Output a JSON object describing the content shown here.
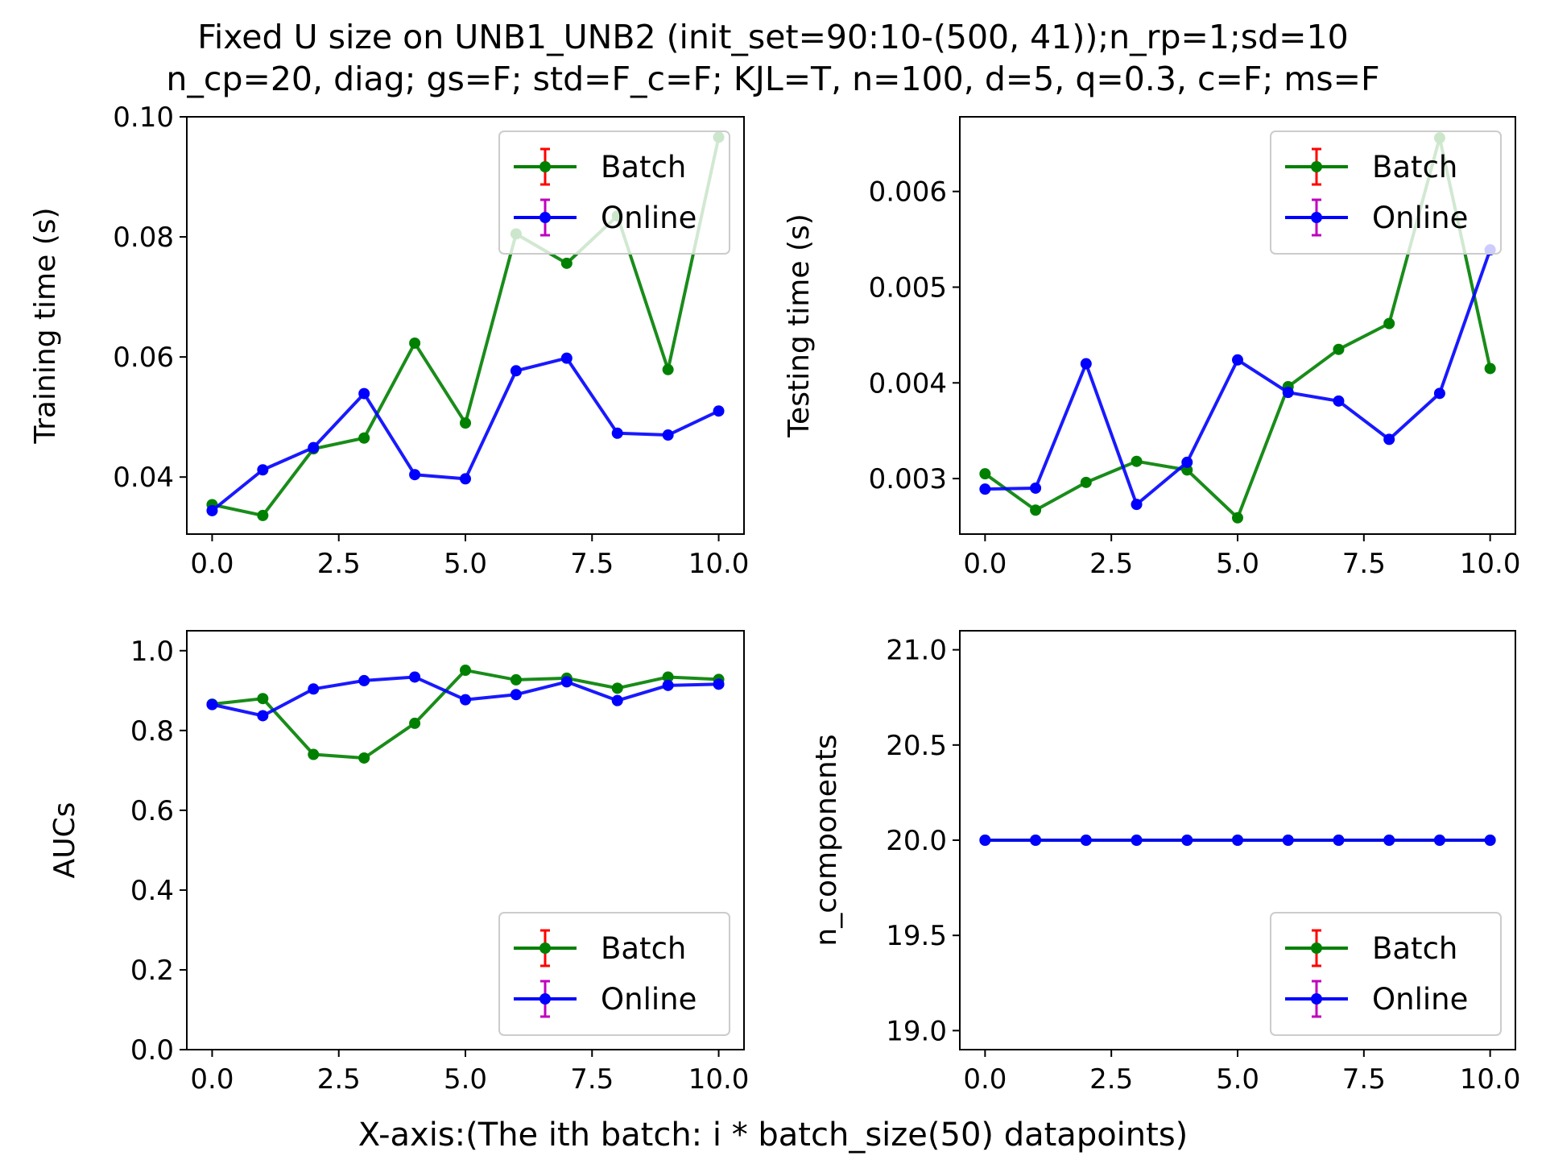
{
  "figure": {
    "title_line1": "Fixed U size on UNB1_UNB2 (init_set=90:10-(500, 41));n_rp=1;sd=10",
    "title_line2": "n_cp=20, diag; gs=F; std=F_c=F; KJL=T, n=100, d=5, q=0.3, c=F; ms=F",
    "xlabel": "X-axis:(The ith batch: i * batch_size(50) datapoints)"
  },
  "chart_data": [
    {
      "type": "line",
      "ylabel": "Training time (s)",
      "xlim": [
        -0.5,
        10.5
      ],
      "ylim": [
        0.0305,
        0.1
      ],
      "xticks": [
        "0.0",
        "2.5",
        "5.0",
        "7.5",
        "10.0"
      ],
      "yticks": [
        "0.04",
        "0.06",
        "0.08",
        "0.10"
      ],
      "x": [
        0,
        1,
        2,
        3,
        4,
        5,
        6,
        7,
        8,
        9,
        10
      ],
      "series": [
        {
          "name": "Batch",
          "color": "#008000",
          "errcolor": "#ff0000",
          "values": [
            0.0354,
            0.0336,
            0.0447,
            0.0465,
            0.0623,
            0.049,
            0.0805,
            0.0756,
            0.0835,
            0.0579,
            0.0966
          ]
        },
        {
          "name": "Online",
          "color": "#0000ff",
          "errcolor": "#bf00bf",
          "values": [
            0.0344,
            0.0412,
            0.0449,
            0.0539,
            0.0404,
            0.0397,
            0.0577,
            0.0598,
            0.0473,
            0.047,
            0.051
          ]
        }
      ],
      "legend": "top-right"
    },
    {
      "type": "line",
      "ylabel": "Testing time (s)",
      "xlim": [
        -0.5,
        10.5
      ],
      "ylim": [
        0.00242,
        0.00678
      ],
      "xticks": [
        "0.0",
        "2.5",
        "5.0",
        "7.5",
        "10.0"
      ],
      "yticks": [
        "0.003",
        "0.004",
        "0.005",
        "0.006"
      ],
      "x": [
        0,
        1,
        2,
        3,
        4,
        5,
        6,
        7,
        8,
        9,
        10
      ],
      "series": [
        {
          "name": "Batch",
          "color": "#008000",
          "errcolor": "#ff0000",
          "values": [
            0.00305,
            0.00267,
            0.00296,
            0.00318,
            0.00309,
            0.00259,
            0.00396,
            0.00435,
            0.00462,
            0.00656,
            0.00415
          ]
        },
        {
          "name": "Online",
          "color": "#0000ff",
          "errcolor": "#bf00bf",
          "values": [
            0.00289,
            0.0029,
            0.0042,
            0.00273,
            0.00317,
            0.00424,
            0.0039,
            0.00381,
            0.00341,
            0.00389,
            0.00539
          ]
        }
      ],
      "legend": "top-right"
    },
    {
      "type": "line",
      "ylabel": "AUCs",
      "xlim": [
        -0.5,
        10.5
      ],
      "ylim": [
        0.0,
        1.05
      ],
      "xticks": [
        "0.0",
        "2.5",
        "5.0",
        "7.5",
        "10.0"
      ],
      "yticks": [
        "0.0",
        "0.2",
        "0.4",
        "0.6",
        "0.8",
        "1.0"
      ],
      "x": [
        0,
        1,
        2,
        3,
        4,
        5,
        6,
        7,
        8,
        9,
        10
      ],
      "series": [
        {
          "name": "Batch",
          "color": "#008000",
          "errcolor": "#ff0000",
          "values": [
            0.866,
            0.88,
            0.74,
            0.731,
            0.818,
            0.951,
            0.927,
            0.931,
            0.906,
            0.934,
            0.928
          ]
        },
        {
          "name": "Online",
          "color": "#0000ff",
          "errcolor": "#bf00bf",
          "values": [
            0.865,
            0.837,
            0.904,
            0.925,
            0.934,
            0.877,
            0.89,
            0.922,
            0.875,
            0.913,
            0.916
          ]
        }
      ],
      "legend": "bottom-right"
    },
    {
      "type": "line",
      "ylabel": "n_components",
      "xlim": [
        -0.5,
        10.5
      ],
      "ylim": [
        18.9,
        21.1
      ],
      "xticks": [
        "0.0",
        "2.5",
        "5.0",
        "7.5",
        "10.0"
      ],
      "yticks": [
        "19.0",
        "19.5",
        "20.0",
        "20.5",
        "21.0"
      ],
      "x": [
        0,
        1,
        2,
        3,
        4,
        5,
        6,
        7,
        8,
        9,
        10
      ],
      "series": [
        {
          "name": "Batch",
          "color": "#008000",
          "errcolor": "#ff0000",
          "values": [
            20,
            20,
            20,
            20,
            20,
            20,
            20,
            20,
            20,
            20,
            20
          ]
        },
        {
          "name": "Online",
          "color": "#0000ff",
          "errcolor": "#bf00bf",
          "values": [
            20,
            20,
            20,
            20,
            20,
            20,
            20,
            20,
            20,
            20,
            20
          ]
        }
      ],
      "legend": "bottom-right"
    }
  ]
}
